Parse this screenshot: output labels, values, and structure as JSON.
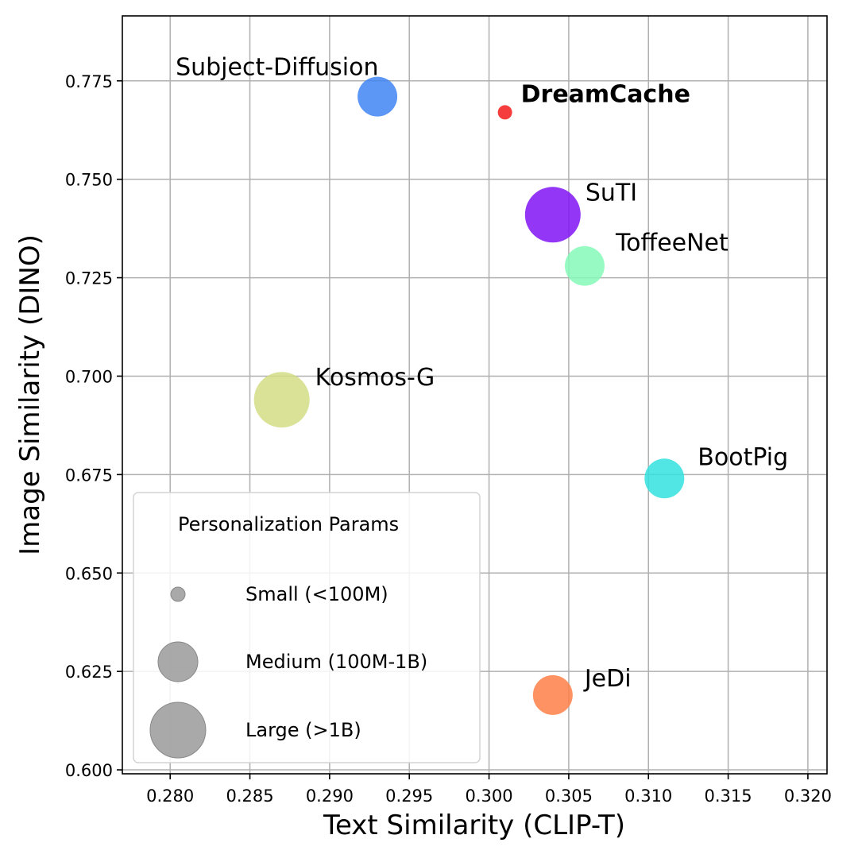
{
  "chart_data": {
    "type": "scatter",
    "xlabel": "Text Similarity (CLIP-T)",
    "ylabel": "Image Similarity (DINO)",
    "xlim": [
      0.277,
      0.3212
    ],
    "ylim": [
      0.599,
      0.7915
    ],
    "grid": true,
    "xticks": [
      0.28,
      0.285,
      0.29,
      0.295,
      0.3,
      0.305,
      0.31,
      0.315,
      0.32
    ],
    "xtick_labels": [
      "0.280",
      "0.285",
      "0.290",
      "0.295",
      "0.300",
      "0.305",
      "0.310",
      "0.315",
      "0.320"
    ],
    "yticks": [
      0.6,
      0.625,
      0.65,
      0.675,
      0.7,
      0.725,
      0.75,
      0.775
    ],
    "ytick_labels": [
      "0.600",
      "0.625",
      "0.650",
      "0.675",
      "0.700",
      "0.725",
      "0.750",
      "0.775"
    ],
    "points": [
      {
        "name": "Subject-Diffusion",
        "x": 0.293,
        "y": 0.771,
        "size": "Medium (100M-1B)",
        "color": "#3f85f5",
        "bold": false
      },
      {
        "name": "DreamCache",
        "x": 0.301,
        "y": 0.767,
        "size": "Small (<100M)",
        "color": "#f51b1b",
        "bold": true
      },
      {
        "name": "SuTI",
        "x": 0.304,
        "y": 0.741,
        "size": "Large (>1B)",
        "color": "#8013f4",
        "bold": false
      },
      {
        "name": "ToffeeNet",
        "x": 0.306,
        "y": 0.728,
        "size": "Medium (100M-1B)",
        "color": "#86f9b8",
        "bold": false
      },
      {
        "name": "Kosmos-G",
        "x": 0.287,
        "y": 0.694,
        "size": "Large (>1B)",
        "color": "#d3dd86",
        "bold": false
      },
      {
        "name": "BootPig",
        "x": 0.311,
        "y": 0.674,
        "size": "Medium (100M-1B)",
        "color": "#33e0de",
        "bold": false
      },
      {
        "name": "JeDi",
        "x": 0.304,
        "y": 0.619,
        "size": "Medium (100M-1B)",
        "color": "#fe7f46",
        "bold": false
      }
    ],
    "legend": {
      "title": "Personalization Params",
      "placement": "lower-left",
      "entries": [
        "Small (<100M)",
        "Medium (100M-1B)",
        "Large (>1B)"
      ],
      "marker_color": "#9a9a9a"
    }
  }
}
